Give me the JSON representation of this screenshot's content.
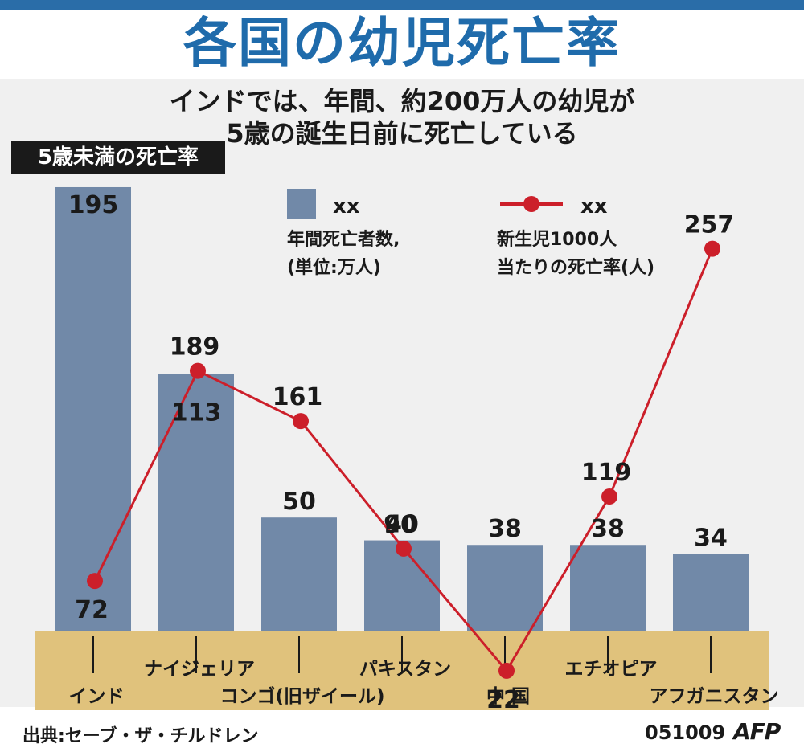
{
  "title": "各国の幼児死亡率",
  "subtitle_line1": "インドでは、年間、約200万人の幼児が",
  "subtitle_line2": "5歳の誕生日前に死亡している",
  "y_badge": "5歳未満の死亡率",
  "legend": {
    "bar_title": "xx",
    "bar_desc1": "年間死亡者数,",
    "bar_desc2": "(単位:万人)",
    "line_title": "xx",
    "line_desc1": "新生児1000人",
    "line_desc2": "当たりの死亡率(人)"
  },
  "source": "出典:セーブ・ザ・チルドレン",
  "date_code": "051009",
  "logo": "AFP",
  "colors": {
    "title": "#1f6bab",
    "bar": "#7189a8",
    "line": "#cc1f2a",
    "axis_band": "#e0c27c"
  },
  "chart_data": {
    "type": "bar",
    "categories": [
      "インド",
      "ナイジェリア",
      "コンゴ(旧ザイール)",
      "パキスタン",
      "中 国",
      "エチオピア",
      "アフガニスタン"
    ],
    "series": [
      {
        "name": "年間死亡者数,(単位:万人)",
        "type": "bar",
        "values": [
          195,
          113,
          50,
          40,
          38,
          38,
          34
        ]
      },
      {
        "name": "新生児1000人当たりの死亡率(人)",
        "type": "line",
        "values": [
          72,
          189,
          161,
          90,
          22,
          119,
          257
        ]
      }
    ],
    "grid": false,
    "legend": "top-right"
  }
}
